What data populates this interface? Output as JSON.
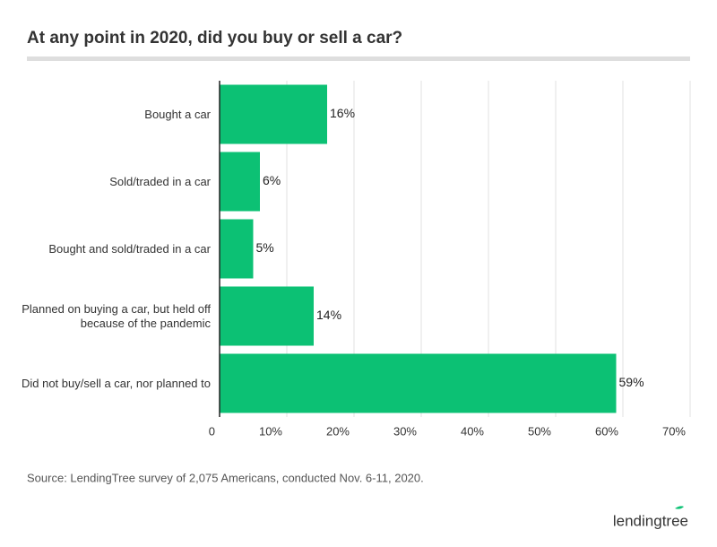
{
  "chart_data": {
    "type": "bar",
    "orientation": "horizontal",
    "title": "At any point in 2020, did you buy or sell a car?",
    "categories": [
      "Bought a car",
      "Sold/traded in a car",
      "Bought and sold/traded in a car",
      "Planned on buying a car, but held off because of the pandemic",
      "Did not buy/sell a car, nor planned to"
    ],
    "values": [
      16,
      6,
      5,
      14,
      59
    ],
    "value_labels": [
      "16%",
      "6%",
      "5%",
      "14%",
      "59%"
    ],
    "color": "#0cc174",
    "xlim": [
      0,
      70
    ],
    "xticks": [
      0,
      {
        "value": 10,
        "label": "10%"
      },
      {
        "value": 20,
        "label": "20%"
      },
      {
        "value": 30,
        "label": "30%"
      },
      {
        "value": 40,
        "label": "40%"
      },
      {
        "value": 50,
        "label": "50%"
      },
      {
        "value": 60,
        "label": "60%"
      },
      {
        "value": 70,
        "label": "70%"
      }
    ],
    "grid": true,
    "source": "Source: LendingTree survey of 2,075 Americans, conducted Nov. 6-11, 2020.",
    "logo": "lendingtree"
  }
}
